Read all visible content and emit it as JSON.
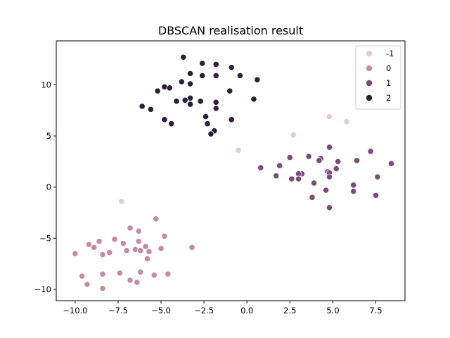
{
  "chart_data": {
    "type": "scatter",
    "title": "DBSCAN realisation result",
    "xlabel": "",
    "ylabel": "",
    "xlim": [
      -11.1,
      9.2
    ],
    "ylim": [
      -11.1,
      14.3
    ],
    "xticks": [
      -10.0,
      -7.5,
      -5.0,
      -2.5,
      0.0,
      2.5,
      5.0,
      7.5
    ],
    "xtick_labels": [
      "−10.0",
      "−7.5",
      "−5.0",
      "−2.5",
      "0.0",
      "2.5",
      "5.0",
      "7.5"
    ],
    "yticks": [
      -10,
      -5,
      0,
      5,
      10
    ],
    "ytick_labels": [
      "−10",
      "−5",
      "0",
      "5",
      "10"
    ],
    "grid": false,
    "legend": {
      "placement": "top-right"
    },
    "series": [
      {
        "name": "-1",
        "color": "#ecc9c5",
        "points": [
          [
            4.8,
            6.9
          ],
          [
            5.8,
            6.4
          ],
          [
            2.7,
            5.1
          ],
          [
            -0.5,
            3.6
          ],
          [
            -7.3,
            -1.4
          ]
        ]
      },
      {
        "name": "0",
        "color": "#c68ba4",
        "points": [
          [
            -5.3,
            -3.1
          ],
          [
            -6.8,
            -4.0
          ],
          [
            -6.3,
            -4.3
          ],
          [
            -4.8,
            -4.8
          ],
          [
            -7.7,
            -5.1
          ],
          [
            -8.6,
            -5.3
          ],
          [
            -9.2,
            -5.6
          ],
          [
            -7.2,
            -5.5
          ],
          [
            -6.3,
            -5.3
          ],
          [
            -5.9,
            -5.8
          ],
          [
            -8.9,
            -5.9
          ],
          [
            -6.5,
            -6.1
          ],
          [
            -6.2,
            -6.2
          ],
          [
            -7.0,
            -6.2
          ],
          [
            -3.2,
            -5.9
          ],
          [
            -5.0,
            -6.0
          ],
          [
            -5.7,
            -6.3
          ],
          [
            -10.0,
            -6.5
          ],
          [
            -8.0,
            -6.4
          ],
          [
            -8.4,
            -6.6
          ],
          [
            -5.8,
            -7.0
          ],
          [
            -8.4,
            -8.5
          ],
          [
            -6.2,
            -8.3
          ],
          [
            -4.6,
            -8.5
          ],
          [
            -7.4,
            -8.4
          ],
          [
            -5.4,
            -8.6
          ],
          [
            -9.6,
            -8.7
          ],
          [
            -6.8,
            -9.1
          ],
          [
            -6.4,
            -9.3
          ],
          [
            -9.3,
            -9.5
          ],
          [
            -8.4,
            -9.9
          ]
        ]
      },
      {
        "name": "1",
        "color": "#7d4a7f",
        "points": [
          [
            4.8,
            3.9
          ],
          [
            7.2,
            3.5
          ],
          [
            2.5,
            2.9
          ],
          [
            3.6,
            3.0
          ],
          [
            4.3,
            2.8
          ],
          [
            4.2,
            2.6
          ],
          [
            5.3,
            2.5
          ],
          [
            6.4,
            2.6
          ],
          [
            8.4,
            2.3
          ],
          [
            0.8,
            1.9
          ],
          [
            1.9,
            2.1
          ],
          [
            5.2,
            1.8
          ],
          [
            4.7,
            1.5
          ],
          [
            4.8,
            1.4
          ],
          [
            3.2,
            1.3
          ],
          [
            3.0,
            1.3
          ],
          [
            1.7,
            1.1
          ],
          [
            4.8,
            1.0
          ],
          [
            2.6,
            0.8
          ],
          [
            3.0,
            0.8
          ],
          [
            7.6,
            1.0
          ],
          [
            3.9,
            0.4
          ],
          [
            6.2,
            0.2
          ],
          [
            4.6,
            -0.3
          ],
          [
            6.2,
            -0.4
          ],
          [
            7.5,
            -0.8
          ],
          [
            3.8,
            -1.0
          ],
          [
            4.8,
            -2.0
          ]
        ]
      },
      {
        "name": "2",
        "color": "#2d1e3e",
        "points": [
          [
            -3.7,
            12.7
          ],
          [
            -2.6,
            12.1
          ],
          [
            -1.8,
            12.0
          ],
          [
            -0.9,
            11.7
          ],
          [
            -3.3,
            11.1
          ],
          [
            -2.6,
            10.9
          ],
          [
            -1.8,
            10.9
          ],
          [
            -0.4,
            10.9
          ],
          [
            0.6,
            10.5
          ],
          [
            -3.3,
            10.1
          ],
          [
            -3.8,
            10.3
          ],
          [
            -4.8,
            9.8
          ],
          [
            -4.5,
            9.7
          ],
          [
            -5.2,
            9.4
          ],
          [
            -1.0,
            9.4
          ],
          [
            -3.3,
            8.7
          ],
          [
            -3.6,
            8.5
          ],
          [
            -2.7,
            8.4
          ],
          [
            -4.1,
            8.4
          ],
          [
            -1.8,
            8.3
          ],
          [
            0.4,
            8.6
          ],
          [
            -6.1,
            7.9
          ],
          [
            -3.3,
            8.1
          ],
          [
            -1.8,
            7.7
          ],
          [
            -5.6,
            7.6
          ],
          [
            -2.4,
            6.9
          ],
          [
            -4.8,
            6.6
          ],
          [
            -0.9,
            6.6
          ],
          [
            -4.4,
            6.2
          ],
          [
            -2.3,
            6.2
          ],
          [
            -1.9,
            5.5
          ],
          [
            -2.1,
            5.2
          ]
        ]
      }
    ]
  }
}
